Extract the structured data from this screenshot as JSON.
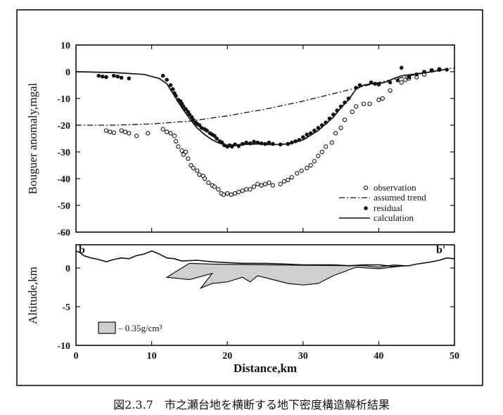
{
  "caption": "図2.3.7　市之瀬台地を横断する地下密度構造解析結果",
  "chart_data": [
    {
      "type": "scatter",
      "ylabel": "Bouguer anomaly,mgal",
      "xlim": [
        0,
        50
      ],
      "ylim": [
        -60,
        10
      ],
      "y_ticks": [
        10,
        0,
        -10,
        -20,
        -30,
        -40,
        -50,
        -60
      ],
      "legend_position": "bottom-right",
      "series": [
        {
          "name": "observation",
          "marker": "open-circle",
          "points": [
            [
              4,
              -22
            ],
            [
              4.5,
              -22.5
            ],
            [
              5,
              -22.8
            ],
            [
              6,
              -22
            ],
            [
              6.5,
              -22.5
            ],
            [
              7,
              -23
            ],
            [
              8,
              -24
            ],
            [
              9.5,
              -23
            ],
            [
              11.5,
              -21.5
            ],
            [
              12,
              -22.5
            ],
            [
              12.5,
              -23
            ],
            [
              13,
              -24
            ],
            [
              13.2,
              -26
            ],
            [
              13.5,
              -28
            ],
            [
              14,
              -29.5
            ],
            [
              14.2,
              -31
            ],
            [
              14.5,
              -30
            ],
            [
              14.8,
              -32.5
            ],
            [
              15.2,
              -35
            ],
            [
              15.5,
              -36
            ],
            [
              16,
              -37
            ],
            [
              16.3,
              -38.5
            ],
            [
              16.8,
              -39
            ],
            [
              17,
              -40
            ],
            [
              17.5,
              -41.5
            ],
            [
              18,
              -42.5
            ],
            [
              18.3,
              -43
            ],
            [
              18.8,
              -44
            ],
            [
              19.2,
              -45.5
            ],
            [
              19.5,
              -46
            ],
            [
              20,
              -45.5
            ],
            [
              20.5,
              -46
            ],
            [
              21,
              -45.5
            ],
            [
              21.5,
              -45
            ],
            [
              22,
              -44.5
            ],
            [
              22.5,
              -44
            ],
            [
              23,
              -44
            ],
            [
              23.5,
              -43
            ],
            [
              24,
              -42
            ],
            [
              24.5,
              -42.5
            ],
            [
              25,
              -42
            ],
            [
              25.5,
              -41.5
            ],
            [
              26,
              -42.5
            ],
            [
              27,
              -42
            ],
            [
              27.5,
              -41
            ],
            [
              28,
              -40.5
            ],
            [
              28.5,
              -39.5
            ],
            [
              29.2,
              -38
            ],
            [
              29.8,
              -37
            ],
            [
              30.5,
              -36
            ],
            [
              31,
              -35
            ],
            [
              31.5,
              -33.5
            ],
            [
              32,
              -31.5
            ],
            [
              32.5,
              -30
            ],
            [
              33,
              -28
            ],
            [
              33.8,
              -26.5
            ],
            [
              34.3,
              -23
            ],
            [
              35,
              -21
            ],
            [
              35.5,
              -18
            ],
            [
              36.5,
              -15
            ],
            [
              37,
              -13
            ],
            [
              38,
              -12
            ],
            [
              38.8,
              -12
            ],
            [
              40,
              -10.5
            ],
            [
              40.5,
              -10
            ],
            [
              41.5,
              -7
            ],
            [
              43,
              -4
            ],
            [
              43.5,
              -3
            ],
            [
              44,
              -2.5
            ],
            [
              45,
              -2
            ],
            [
              46,
              -1
            ],
            [
              47,
              0.5
            ],
            [
              48,
              0.8
            ]
          ]
        },
        {
          "name": "assumed trend",
          "line": "dash-dot",
          "points": [
            [
              0,
              -20
            ],
            [
              5,
              -20
            ],
            [
              10,
              -19.5
            ],
            [
              15,
              -18.5
            ],
            [
              20,
              -16.5
            ],
            [
              25,
              -14
            ],
            [
              30,
              -11
            ],
            [
              35,
              -7.5
            ],
            [
              40,
              -4
            ],
            [
              45,
              -1
            ],
            [
              50,
              1.5
            ]
          ]
        },
        {
          "name": "residual",
          "marker": "filled-circle",
          "points": [
            [
              3,
              -1.5
            ],
            [
              3.5,
              -1.8
            ],
            [
              4,
              -2
            ],
            [
              5,
              -1.5
            ],
            [
              5.5,
              -1.8
            ],
            [
              6,
              -2.2
            ],
            [
              7,
              -2.5
            ],
            [
              11.5,
              -1.5
            ],
            [
              12,
              -3
            ],
            [
              12.5,
              -5
            ],
            [
              12.8,
              -6.5
            ],
            [
              13,
              -8
            ],
            [
              13.2,
              -9
            ],
            [
              13.5,
              -10.5
            ],
            [
              13.8,
              -11
            ],
            [
              14,
              -12
            ],
            [
              14.2,
              -13
            ],
            [
              14.5,
              -14
            ],
            [
              14.8,
              -15
            ],
            [
              15,
              -16
            ],
            [
              15.3,
              -17
            ],
            [
              15.5,
              -18
            ],
            [
              15.8,
              -19
            ],
            [
              16,
              -19.5
            ],
            [
              16.3,
              -20
            ],
            [
              16.6,
              -21
            ],
            [
              17,
              -21.5
            ],
            [
              17.3,
              -22
            ],
            [
              17.7,
              -23
            ],
            [
              18,
              -23.5
            ],
            [
              18.3,
              -24
            ],
            [
              18.6,
              -25
            ],
            [
              19,
              -26
            ],
            [
              19.3,
              -26.5
            ],
            [
              19.6,
              -27.5
            ],
            [
              20,
              -28
            ],
            [
              20.3,
              -27.5
            ],
            [
              20.6,
              -28
            ],
            [
              21,
              -27.2
            ],
            [
              21.5,
              -27.8
            ],
            [
              22,
              -27
            ],
            [
              22.5,
              -26.5
            ],
            [
              23,
              -26.8
            ],
            [
              23.5,
              -26.2
            ],
            [
              24,
              -26.5
            ],
            [
              24.5,
              -26.8
            ],
            [
              25,
              -27
            ],
            [
              25.5,
              -26.5
            ],
            [
              26,
              -27
            ],
            [
              27,
              -27.2
            ],
            [
              28,
              -27
            ],
            [
              28.5,
              -26.5
            ],
            [
              29,
              -26
            ],
            [
              29.5,
              -25.5
            ],
            [
              30,
              -24.5
            ],
            [
              30.5,
              -23.5
            ],
            [
              31,
              -23
            ],
            [
              31.5,
              -22
            ],
            [
              32,
              -21
            ],
            [
              32.5,
              -20
            ],
            [
              33,
              -19
            ],
            [
              33.5,
              -17.5
            ],
            [
              34,
              -16
            ],
            [
              34.5,
              -14.5
            ],
            [
              35,
              -13
            ],
            [
              35.5,
              -11.5
            ],
            [
              36,
              -10
            ],
            [
              37,
              -6
            ],
            [
              37.5,
              -5
            ],
            [
              39,
              -4
            ],
            [
              39.5,
              -4.5
            ],
            [
              40,
              -4.8
            ],
            [
              41.5,
              -4
            ],
            [
              42.5,
              -3.2
            ],
            [
              43,
              1.5
            ],
            [
              44,
              -2
            ],
            [
              45,
              -1
            ],
            [
              46,
              0
            ],
            [
              47,
              0.5
            ],
            [
              48,
              1
            ],
            [
              49,
              0.8
            ]
          ]
        },
        {
          "name": "calculation",
          "line": "solid",
          "points": [
            [
              0,
              0
            ],
            [
              5,
              -0.3
            ],
            [
              9,
              -1
            ],
            [
              11,
              -2.5
            ],
            [
              12,
              -4.5
            ],
            [
              13,
              -9
            ],
            [
              14,
              -13.5
            ],
            [
              15,
              -17.5
            ],
            [
              16,
              -21
            ],
            [
              17,
              -23.5
            ],
            [
              18,
              -25.5
            ],
            [
              19,
              -26.8
            ],
            [
              20,
              -27.5
            ],
            [
              22,
              -27.2
            ],
            [
              24,
              -27
            ],
            [
              26,
              -27.3
            ],
            [
              28,
              -27
            ],
            [
              30,
              -25.5
            ],
            [
              32,
              -22
            ],
            [
              34,
              -17
            ],
            [
              35,
              -13.5
            ],
            [
              36,
              -10.5
            ],
            [
              37,
              -6.5
            ],
            [
              38,
              -5
            ],
            [
              39,
              -4.5
            ],
            [
              40,
              -4.5
            ],
            [
              41,
              -3.8
            ],
            [
              42,
              -2.5
            ],
            [
              43,
              -1.5
            ],
            [
              45,
              -0.8
            ],
            [
              47,
              0
            ],
            [
              48,
              0.5
            ],
            [
              49,
              1
            ]
          ]
        }
      ]
    },
    {
      "type": "area",
      "xlabel": "Distance,km",
      "ylabel": "Altitude,km",
      "xlim": [
        0,
        50
      ],
      "ylim": [
        -10,
        3
      ],
      "x_ticks": [
        0,
        10,
        20,
        30,
        40,
        50
      ],
      "y_ticks": [
        0,
        -5,
        -10
      ],
      "labels": {
        "left": "b",
        "right": "b'"
      },
      "legend_label": "– 0.35g/cm³",
      "topography": [
        [
          0,
          2.2
        ],
        [
          0.5,
          2
        ],
        [
          1,
          1.6
        ],
        [
          2,
          1.3
        ],
        [
          3,
          1.1
        ],
        [
          4,
          0.8
        ],
        [
          5,
          1.1
        ],
        [
          6,
          1.3
        ],
        [
          7,
          1.2
        ],
        [
          8,
          1.6
        ],
        [
          9,
          1.8
        ],
        [
          10,
          2.2
        ],
        [
          11,
          1.8
        ],
        [
          12,
          1.3
        ],
        [
          13,
          1.2
        ],
        [
          14,
          0.9
        ],
        [
          16,
          1.0
        ],
        [
          18,
          0.8
        ],
        [
          20,
          0.7
        ],
        [
          22,
          0.6
        ],
        [
          25,
          0.6
        ],
        [
          28,
          0.5
        ],
        [
          30,
          0.4
        ],
        [
          32,
          0.4
        ],
        [
          34,
          0.4
        ],
        [
          36,
          0.3
        ],
        [
          38,
          0.4
        ],
        [
          40,
          0.4
        ],
        [
          42,
          0.2
        ],
        [
          44,
          0.3
        ],
        [
          45,
          0.5
        ],
        [
          47,
          0.8
        ],
        [
          48,
          1.0
        ],
        [
          49,
          1.3
        ],
        [
          50,
          1.2
        ]
      ],
      "density_body": [
        [
          12,
          -1.2
        ],
        [
          15,
          0.6
        ],
        [
          18,
          0.5
        ],
        [
          22,
          0.45
        ],
        [
          26,
          0.4
        ],
        [
          30,
          0.35
        ],
        [
          35,
          0.3
        ],
        [
          38,
          0.3
        ],
        [
          40,
          0.1
        ],
        [
          42,
          0.4
        ],
        [
          43.5,
          0.3
        ],
        [
          40,
          -0.1
        ],
        [
          37,
          0.1
        ],
        [
          34,
          -1.0
        ],
        [
          32,
          -2.0
        ],
        [
          30,
          -2.2
        ],
        [
          28,
          -2.0
        ],
        [
          26,
          -1.5
        ],
        [
          24,
          -1.0
        ],
        [
          23,
          -1.8
        ],
        [
          22,
          -1.2
        ],
        [
          20,
          -1.8
        ],
        [
          18,
          -2.0
        ],
        [
          16.5,
          -2.6
        ],
        [
          18,
          -0.7
        ],
        [
          15,
          -1.5
        ]
      ]
    }
  ]
}
